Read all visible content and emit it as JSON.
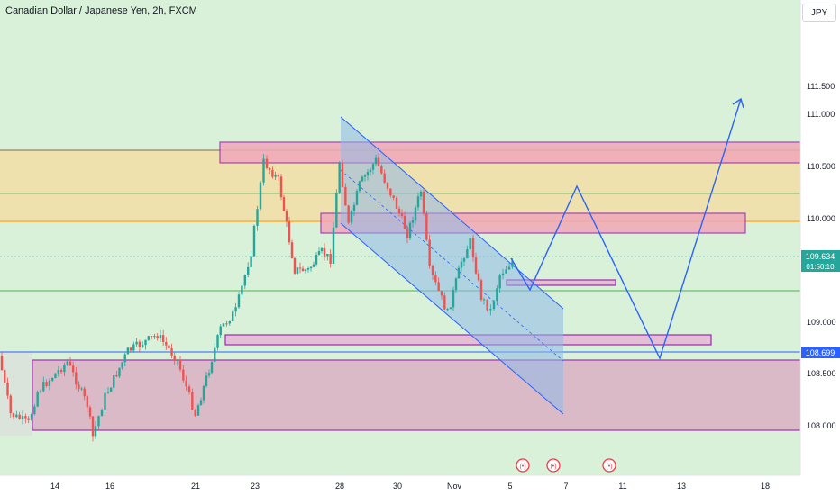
{
  "header": {
    "symbol_title": "Canadian Dollar / Japanese Yen, 2h, FXCM"
  },
  "toolbar": {
    "currency_label": "JPY"
  },
  "price_axis": {
    "labels": [
      "111.500",
      "111.000",
      "110.500",
      "110.000",
      "109.000",
      "108.500",
      "108.000"
    ],
    "current_price": "109.634",
    "countdown": "01:50:10",
    "marked_price": "108.699"
  },
  "time_axis": {
    "labels": [
      "14",
      "16",
      "21",
      "23",
      "28",
      "30",
      "Nov",
      "5",
      "7",
      "11",
      "13",
      "18"
    ]
  },
  "colors": {
    "up": "#26a69a",
    "down": "#ef5350",
    "drawing_blue": "#2962ff",
    "zone_border": "#9c27b0",
    "background_green": "#dcf2dc",
    "current_price_badge": "#26a69a",
    "marked_price_badge": "#2962ff",
    "event_icon": "#f23645"
  },
  "event_icons": [
    "flag-icon-canada",
    "flag-icon-canada",
    "flag-icon-canada"
  ]
}
